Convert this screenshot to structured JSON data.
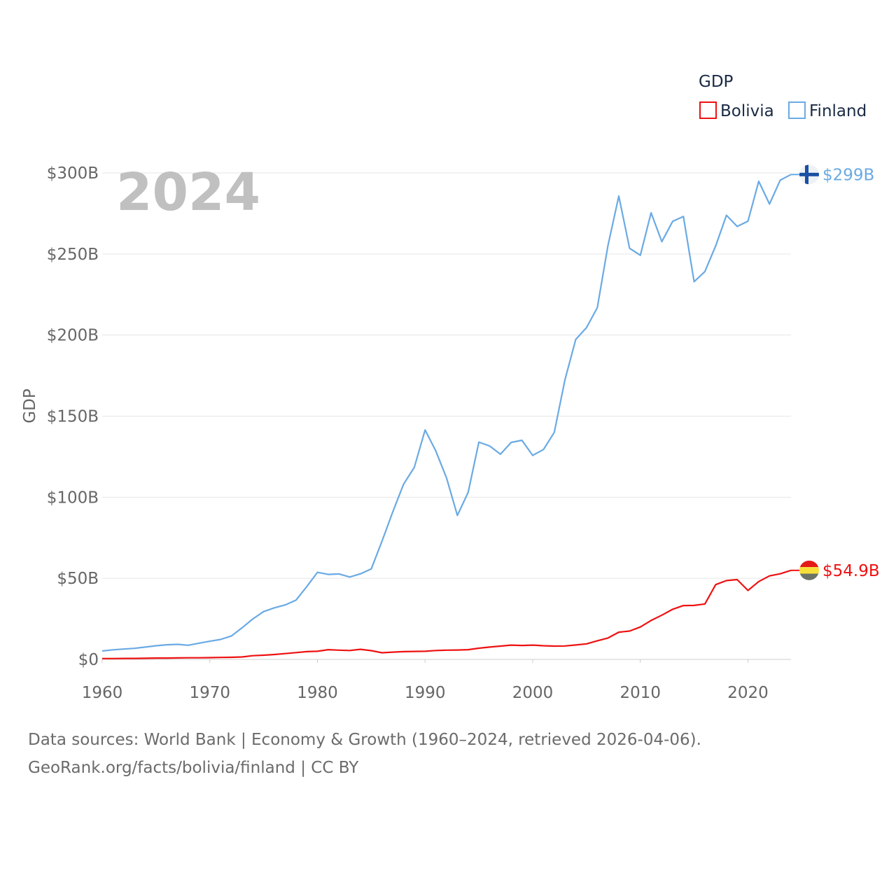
{
  "chart_data": {
    "type": "line",
    "legend_title": "GDP",
    "ylabel": "GDP",
    "year_label": "2024",
    "ylim": [
      0,
      300
    ],
    "y_ticks": [
      "$0",
      "$50B",
      "$100B",
      "$150B",
      "$200B",
      "$250B",
      "$300B"
    ],
    "x_ticks": [
      "1960",
      "1970",
      "1980",
      "1990",
      "2000",
      "2010",
      "2020"
    ],
    "x": [
      1960,
      1961,
      1962,
      1963,
      1964,
      1965,
      1966,
      1967,
      1968,
      1969,
      1970,
      1971,
      1972,
      1973,
      1974,
      1975,
      1976,
      1977,
      1978,
      1979,
      1980,
      1981,
      1982,
      1983,
      1984,
      1985,
      1986,
      1987,
      1988,
      1989,
      1990,
      1991,
      1992,
      1993,
      1994,
      1995,
      1996,
      1997,
      1998,
      1999,
      2000,
      2001,
      2002,
      2003,
      2004,
      2005,
      2006,
      2007,
      2008,
      2009,
      2010,
      2011,
      2012,
      2013,
      2014,
      2015,
      2016,
      2017,
      2018,
      2019,
      2020,
      2021,
      2022,
      2023,
      2024
    ],
    "series": [
      {
        "name": "Bolivia",
        "color": "#ee1111",
        "end_label": "$54.9B",
        "values": [
          0.5,
          0.5,
          0.6,
          0.6,
          0.7,
          0.8,
          0.8,
          0.9,
          1.0,
          1.0,
          1.1,
          1.2,
          1.3,
          1.5,
          2.3,
          2.6,
          3.0,
          3.6,
          4.2,
          4.8,
          5.0,
          6.0,
          5.7,
          5.5,
          6.2,
          5.4,
          4.1,
          4.5,
          4.8,
          4.9,
          5.0,
          5.5,
          5.7,
          5.8,
          6.0,
          6.9,
          7.6,
          8.2,
          8.8,
          8.6,
          8.8,
          8.4,
          8.2,
          8.3,
          8.9,
          9.6,
          11.5,
          13.2,
          16.8,
          17.5,
          20.0,
          24.0,
          27.3,
          30.9,
          33.2,
          33.3,
          34.2,
          46.1,
          48.6,
          49.2,
          42.5,
          48.0,
          51.5,
          52.8,
          54.9
        ]
      },
      {
        "name": "Finland",
        "color": "#6aaae4",
        "end_label": "$299B",
        "values": [
          5.2,
          5.9,
          6.4,
          6.8,
          7.6,
          8.4,
          9.0,
          9.3,
          8.7,
          10.0,
          11.2,
          12.3,
          14.4,
          19.5,
          25.0,
          29.5,
          31.8,
          33.6,
          36.5,
          44.8,
          53.7,
          52.4,
          52.7,
          50.8,
          52.8,
          55.8,
          73.0,
          91.0,
          108.0,
          118.5,
          141.5,
          128.5,
          111.8,
          88.8,
          103.0,
          134.0,
          131.6,
          126.5,
          133.8,
          135.1,
          125.8,
          129.4,
          140.0,
          172.5,
          197.3,
          204.6,
          216.9,
          255.4,
          285.7,
          253.5,
          249.2,
          275.4,
          257.6,
          270.1,
          273.1,
          232.9,
          239.2,
          255.0,
          273.9,
          267.0,
          270.2,
          294.8,
          280.8,
          295.5,
          299.0
        ]
      }
    ]
  },
  "source_line1": "Data sources: World Bank | Economy & Growth (1960–2024, retrieved 2026-04-06).",
  "source_line2": "GeoRank.org/facts/bolivia/finland | CC BY"
}
